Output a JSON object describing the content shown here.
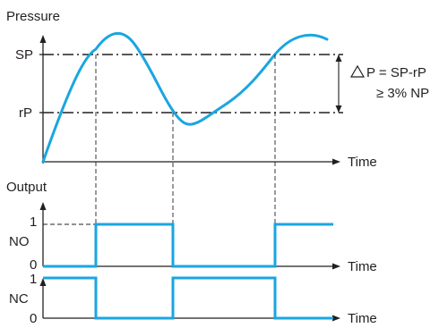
{
  "colors": {
    "signal": "#19a6e0",
    "ink": "#231f20"
  },
  "pressure_plot": {
    "y_title": "Pressure",
    "x_label": "Time",
    "sp_label": "SP",
    "rp_label": "rP",
    "delta_line1": "P = SP-rP",
    "delta_line2": "≥ 3% NP",
    "delta_icon": "triangle-delta-icon"
  },
  "output_plot": {
    "title": "Output",
    "no": {
      "name": "NO",
      "high_label": "1",
      "low_label": "0",
      "x_label": "Time",
      "states": [
        0,
        1,
        0,
        1
      ]
    },
    "nc": {
      "name": "NC",
      "high_label": "1",
      "low_label": "0",
      "x_label": "Time",
      "states": [
        1,
        0,
        1,
        0
      ]
    }
  }
}
